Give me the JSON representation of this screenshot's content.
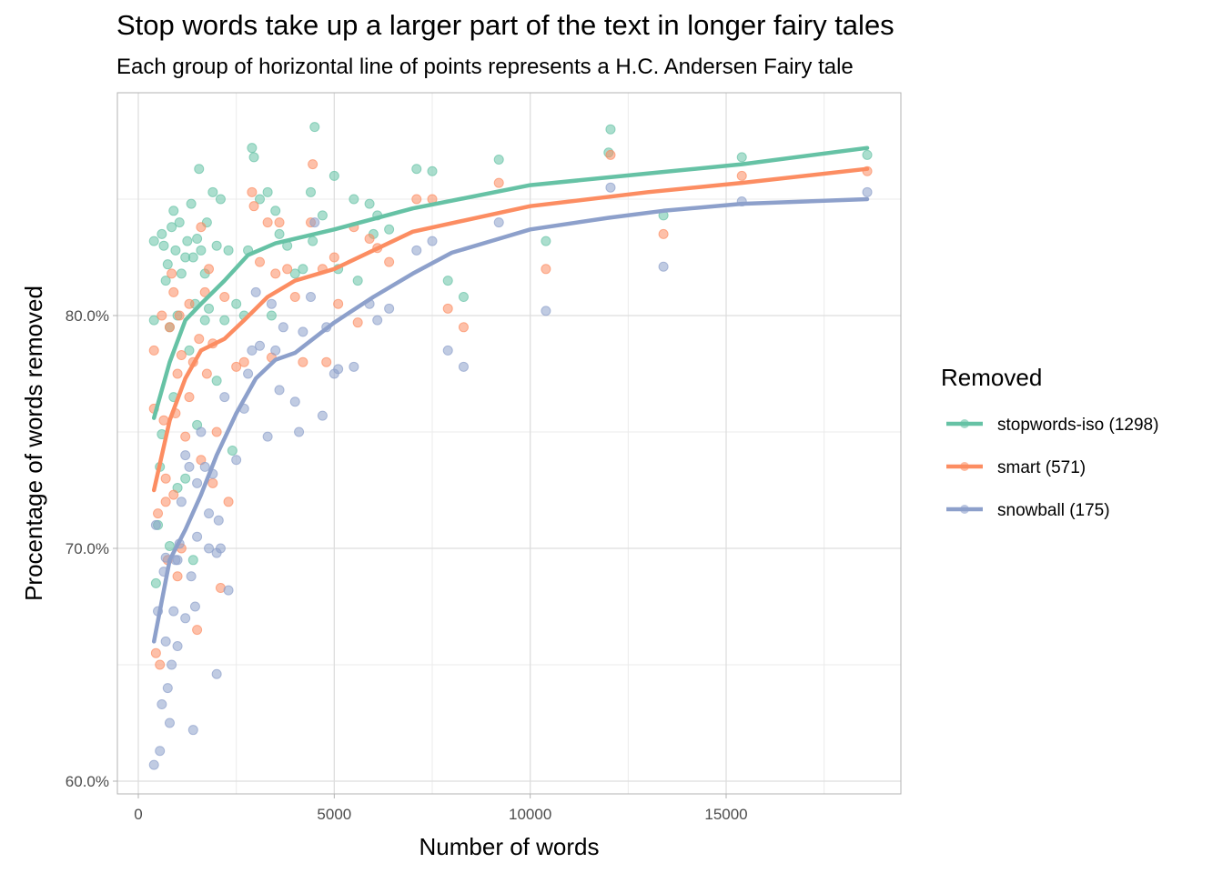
{
  "chart_data": {
    "type": "scatter",
    "title": "Stop words take up a larger part of the text in longer fairy tales",
    "subtitle": "Each group of horizontal line of points represents a H.C. Andersen Fairy tale",
    "xlabel": "Number of words",
    "ylabel": "Procentage of words removed",
    "xlim": [
      -500,
      19400
    ],
    "ylim": [
      59.5,
      89.5
    ],
    "x_ticks": [
      0,
      5000,
      10000,
      15000
    ],
    "x_tick_labels": [
      "0",
      "5000",
      "10000",
      "15000"
    ],
    "y_ticks": [
      60,
      70,
      80
    ],
    "y_tick_labels": [
      "60.0%",
      "70.0%",
      "80.0%"
    ],
    "grid": true,
    "legend": {
      "title": "Removed",
      "position": "right",
      "entries": [
        "stopwords-iso (1298)",
        "smart (571)",
        "snowball (175)"
      ]
    },
    "series": [
      {
        "name": "stopwords-iso (1298)",
        "color": "#66C2A5",
        "trend": [
          [
            400,
            75.6
          ],
          [
            800,
            78.0
          ],
          [
            1200,
            79.8
          ],
          [
            1600,
            80.5
          ],
          [
            2200,
            81.5
          ],
          [
            2800,
            82.6
          ],
          [
            3500,
            83.1
          ],
          [
            5000,
            83.7
          ],
          [
            7000,
            84.6
          ],
          [
            10000,
            85.6
          ],
          [
            13000,
            86.1
          ],
          [
            15400,
            86.5
          ],
          [
            18600,
            87.2
          ]
        ],
        "points": [
          [
            400,
            83.2
          ],
          [
            400,
            79.8
          ],
          [
            450,
            68.5
          ],
          [
            500,
            71.0
          ],
          [
            550,
            73.5
          ],
          [
            600,
            83.5
          ],
          [
            650,
            83.0
          ],
          [
            700,
            81.5
          ],
          [
            750,
            82.2
          ],
          [
            800,
            79.5
          ],
          [
            850,
            83.8
          ],
          [
            900,
            84.5
          ],
          [
            950,
            82.8
          ],
          [
            1000,
            80.0
          ],
          [
            1050,
            84.0
          ],
          [
            1100,
            81.8
          ],
          [
            1200,
            82.5
          ],
          [
            1250,
            83.2
          ],
          [
            1300,
            78.5
          ],
          [
            1350,
            84.8
          ],
          [
            1400,
            82.5
          ],
          [
            1450,
            80.5
          ],
          [
            1500,
            83.3
          ],
          [
            1550,
            86.3
          ],
          [
            1600,
            82.8
          ],
          [
            1700,
            81.8
          ],
          [
            1750,
            84.0
          ],
          [
            1800,
            80.3
          ],
          [
            1900,
            85.3
          ],
          [
            2000,
            83.0
          ],
          [
            2100,
            85.0
          ],
          [
            2200,
            79.8
          ],
          [
            2300,
            82.8
          ],
          [
            2500,
            80.5
          ],
          [
            2700,
            80.0
          ],
          [
            2800,
            82.8
          ],
          [
            2900,
            87.2
          ],
          [
            2950,
            86.8
          ],
          [
            3100,
            85.0
          ],
          [
            3300,
            85.3
          ],
          [
            3400,
            80.0
          ],
          [
            3500,
            84.5
          ],
          [
            3600,
            83.5
          ],
          [
            3800,
            83.0
          ],
          [
            4000,
            81.8
          ],
          [
            4200,
            82.0
          ],
          [
            4400,
            85.3
          ],
          [
            4450,
            83.2
          ],
          [
            4500,
            88.1
          ],
          [
            4700,
            84.3
          ],
          [
            5000,
            86.0
          ],
          [
            5100,
            82.0
          ],
          [
            5500,
            85.0
          ],
          [
            5600,
            81.5
          ],
          [
            5900,
            84.8
          ],
          [
            6000,
            83.5
          ],
          [
            6100,
            84.3
          ],
          [
            6400,
            83.7
          ],
          [
            7100,
            86.3
          ],
          [
            7500,
            86.2
          ],
          [
            7900,
            81.5
          ],
          [
            8300,
            80.8
          ],
          [
            9200,
            86.7
          ],
          [
            10400,
            83.2
          ],
          [
            12000,
            87.0
          ],
          [
            12050,
            88.0
          ],
          [
            13400,
            84.3
          ],
          [
            15400,
            86.8
          ],
          [
            18600,
            86.9
          ],
          [
            600,
            74.9
          ],
          [
            800,
            70.1
          ],
          [
            1000,
            72.6
          ],
          [
            1200,
            73.0
          ],
          [
            1500,
            75.3
          ],
          [
            1700,
            79.8
          ],
          [
            2000,
            77.2
          ],
          [
            2400,
            74.2
          ],
          [
            1400,
            69.5
          ],
          [
            900,
            76.5
          ]
        ]
      },
      {
        "name": "smart (571)",
        "color": "#FC8D62",
        "trend": [
          [
            400,
            72.5
          ],
          [
            800,
            75.5
          ],
          [
            1200,
            77.3
          ],
          [
            1600,
            78.5
          ],
          [
            2200,
            79.0
          ],
          [
            2700,
            79.8
          ],
          [
            3300,
            80.8
          ],
          [
            4000,
            81.5
          ],
          [
            5000,
            82.0
          ],
          [
            7000,
            83.6
          ],
          [
            10000,
            84.7
          ],
          [
            13000,
            85.3
          ],
          [
            15400,
            85.7
          ],
          [
            18600,
            86.3
          ]
        ],
        "points": [
          [
            400,
            78.5
          ],
          [
            400,
            76.0
          ],
          [
            450,
            65.5
          ],
          [
            500,
            71.5
          ],
          [
            550,
            65.0
          ],
          [
            600,
            80.0
          ],
          [
            650,
            75.5
          ],
          [
            700,
            72.0
          ],
          [
            750,
            69.5
          ],
          [
            800,
            79.5
          ],
          [
            850,
            81.8
          ],
          [
            900,
            81.0
          ],
          [
            950,
            75.8
          ],
          [
            1000,
            77.5
          ],
          [
            1050,
            80.0
          ],
          [
            1100,
            78.3
          ],
          [
            1200,
            74.8
          ],
          [
            1300,
            80.5
          ],
          [
            1400,
            78.0
          ],
          [
            1500,
            66.5
          ],
          [
            1550,
            79.0
          ],
          [
            1600,
            83.8
          ],
          [
            1700,
            81.0
          ],
          [
            1750,
            77.5
          ],
          [
            1800,
            82.0
          ],
          [
            1900,
            78.8
          ],
          [
            2000,
            75.0
          ],
          [
            2100,
            68.3
          ],
          [
            2200,
            80.8
          ],
          [
            2300,
            72.0
          ],
          [
            2500,
            77.8
          ],
          [
            2700,
            78.0
          ],
          [
            2900,
            85.3
          ],
          [
            2950,
            84.7
          ],
          [
            3100,
            82.3
          ],
          [
            3300,
            84.0
          ],
          [
            3400,
            78.2
          ],
          [
            3500,
            81.8
          ],
          [
            3600,
            84.0
          ],
          [
            3800,
            82.0
          ],
          [
            4000,
            80.8
          ],
          [
            4200,
            78.0
          ],
          [
            4400,
            84.0
          ],
          [
            4450,
            86.5
          ],
          [
            4700,
            82.0
          ],
          [
            4800,
            78.0
          ],
          [
            5000,
            82.5
          ],
          [
            5100,
            80.5
          ],
          [
            5500,
            83.8
          ],
          [
            5600,
            79.7
          ],
          [
            5900,
            83.3
          ],
          [
            6100,
            82.9
          ],
          [
            6400,
            82.3
          ],
          [
            7100,
            85.0
          ],
          [
            7500,
            85.0
          ],
          [
            7900,
            80.3
          ],
          [
            8300,
            79.5
          ],
          [
            9200,
            85.7
          ],
          [
            10400,
            82.0
          ],
          [
            12050,
            86.9
          ],
          [
            13400,
            83.5
          ],
          [
            15400,
            86.0
          ],
          [
            18600,
            86.2
          ],
          [
            700,
            73.0
          ],
          [
            900,
            72.3
          ],
          [
            1100,
            70.0
          ],
          [
            1300,
            76.5
          ],
          [
            1600,
            73.8
          ],
          [
            1900,
            72.8
          ],
          [
            1000,
            68.8
          ]
        ]
      },
      {
        "name": "snowball (175)",
        "color": "#8DA0CB",
        "trend": [
          [
            400,
            66.0
          ],
          [
            800,
            69.5
          ],
          [
            1200,
            70.8
          ],
          [
            1600,
            72.3
          ],
          [
            2000,
            74.0
          ],
          [
            2500,
            75.8
          ],
          [
            3000,
            77.3
          ],
          [
            3500,
            78.1
          ],
          [
            4000,
            78.4
          ],
          [
            5000,
            79.7
          ],
          [
            6000,
            80.8
          ],
          [
            7000,
            81.8
          ],
          [
            8000,
            82.7
          ],
          [
            9000,
            83.2
          ],
          [
            10000,
            83.7
          ],
          [
            12000,
            84.2
          ],
          [
            13400,
            84.5
          ],
          [
            15400,
            84.8
          ],
          [
            18600,
            85.0
          ]
        ],
        "points": [
          [
            400,
            60.7
          ],
          [
            450,
            71.0
          ],
          [
            500,
            67.3
          ],
          [
            550,
            61.3
          ],
          [
            600,
            63.3
          ],
          [
            650,
            69.0
          ],
          [
            700,
            66.0
          ],
          [
            750,
            64.0
          ],
          [
            800,
            62.5
          ],
          [
            850,
            65.0
          ],
          [
            900,
            67.3
          ],
          [
            950,
            69.5
          ],
          [
            1000,
            65.8
          ],
          [
            1050,
            70.2
          ],
          [
            1100,
            72.0
          ],
          [
            1200,
            67.0
          ],
          [
            1300,
            73.5
          ],
          [
            1350,
            68.8
          ],
          [
            1400,
            62.2
          ],
          [
            1450,
            67.5
          ],
          [
            1500,
            72.8
          ],
          [
            1600,
            75.0
          ],
          [
            1700,
            73.5
          ],
          [
            1800,
            70.0
          ],
          [
            1900,
            73.2
          ],
          [
            2000,
            64.6
          ],
          [
            2050,
            71.2
          ],
          [
            2100,
            70.0
          ],
          [
            2200,
            76.5
          ],
          [
            2300,
            68.2
          ],
          [
            2500,
            73.8
          ],
          [
            2700,
            76.0
          ],
          [
            2800,
            77.5
          ],
          [
            2900,
            78.5
          ],
          [
            3000,
            81.0
          ],
          [
            3100,
            78.7
          ],
          [
            3300,
            74.8
          ],
          [
            3400,
            80.5
          ],
          [
            3500,
            78.5
          ],
          [
            3600,
            76.8
          ],
          [
            3700,
            79.5
          ],
          [
            4000,
            76.3
          ],
          [
            4100,
            75.0
          ],
          [
            4200,
            79.3
          ],
          [
            4400,
            80.8
          ],
          [
            4500,
            84.0
          ],
          [
            4700,
            75.7
          ],
          [
            4800,
            79.5
          ],
          [
            5000,
            77.5
          ],
          [
            5100,
            77.7
          ],
          [
            5500,
            77.8
          ],
          [
            5900,
            80.5
          ],
          [
            6100,
            79.8
          ],
          [
            6400,
            80.3
          ],
          [
            7100,
            82.8
          ],
          [
            7500,
            83.2
          ],
          [
            7900,
            78.5
          ],
          [
            8300,
            77.8
          ],
          [
            9200,
            84.0
          ],
          [
            10400,
            80.2
          ],
          [
            12050,
            85.5
          ],
          [
            13400,
            82.1
          ],
          [
            15400,
            84.9
          ],
          [
            18600,
            85.3
          ],
          [
            700,
            69.6
          ],
          [
            1000,
            69.5
          ],
          [
            1500,
            70.5
          ],
          [
            2000,
            69.8
          ],
          [
            1200,
            74.0
          ],
          [
            1800,
            71.5
          ]
        ]
      }
    ]
  }
}
